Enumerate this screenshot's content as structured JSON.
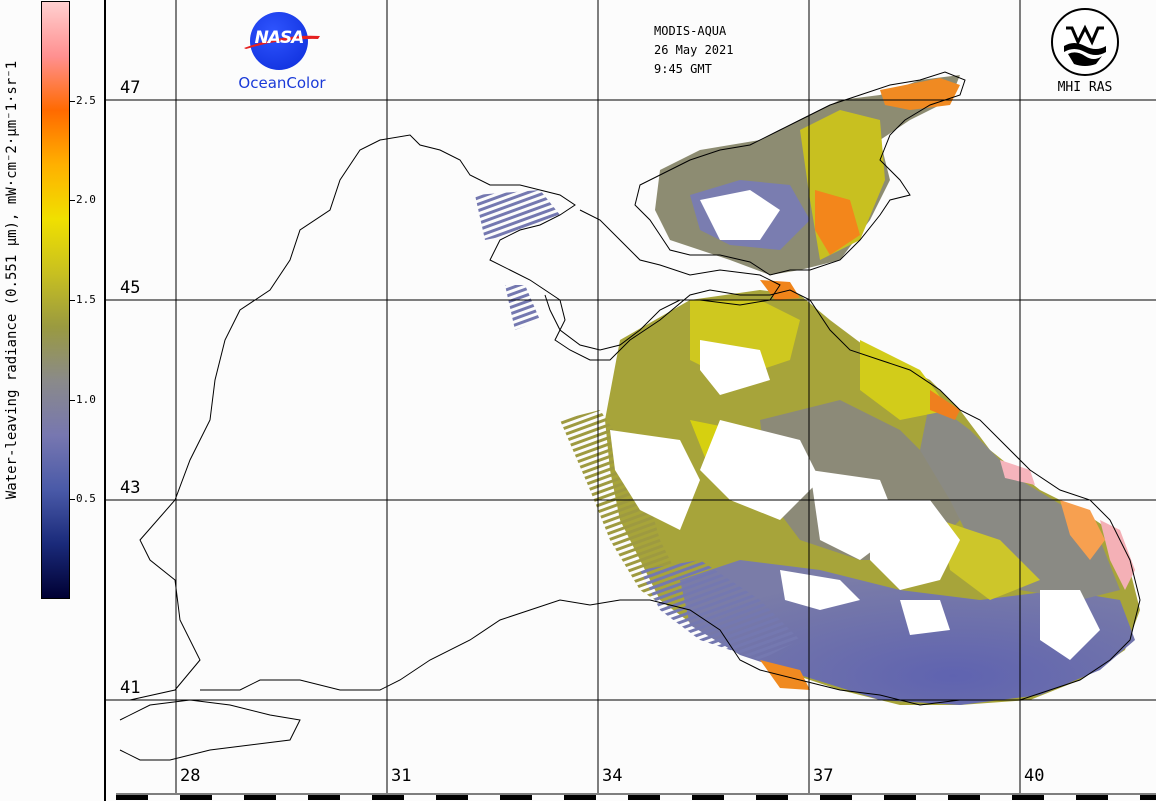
{
  "colorbar": {
    "title": "Water-leaving radiance (0.551 µm), mW·cm⁻2·µm⁻1·sr⁻1",
    "ticks": [
      "2.5",
      "2.0",
      "1.5",
      "1.0",
      "0.5"
    ],
    "tick_values": [
      2.5,
      2.0,
      1.5,
      1.0,
      0.5
    ],
    "range": [
      0,
      3.0
    ],
    "colors": [
      "#000033",
      "#1a2a7a",
      "#4a5aa8",
      "#7777b0",
      "#8a8a8a",
      "#9a9a40",
      "#c8c020",
      "#f0e000",
      "#ffb000",
      "#ff6a00",
      "#ff9090",
      "#ffd0d0"
    ]
  },
  "map": {
    "latitudes": [
      {
        "label": "47",
        "value": 47
      },
      {
        "label": "45",
        "value": 45
      },
      {
        "label": "43",
        "value": 43
      },
      {
        "label": "41",
        "value": 41
      }
    ],
    "longitudes": [
      {
        "label": "28",
        "value": 28
      },
      {
        "label": "31",
        "value": 31
      },
      {
        "label": "34",
        "value": 34
      },
      {
        "label": "37",
        "value": 37
      },
      {
        "label": "40",
        "value": 40
      }
    ],
    "colors": {
      "land": "#fcfcfc",
      "coast": "#000000",
      "grid": "#000000",
      "cloud": "#ffffff",
      "water_blue": "#6f73b0",
      "water_olive": "#a5a33a",
      "water_yellow": "#d4cc18",
      "water_orange": "#f08a10",
      "water_pink": "#f6b0b8"
    }
  },
  "header": {
    "logo_text": "NASA",
    "logo_subtitle": "OceanColor",
    "sensor": "MODIS-AQUA",
    "date": "26 May 2021",
    "time": "9:45 GMT",
    "institute": "MHI RAS"
  }
}
